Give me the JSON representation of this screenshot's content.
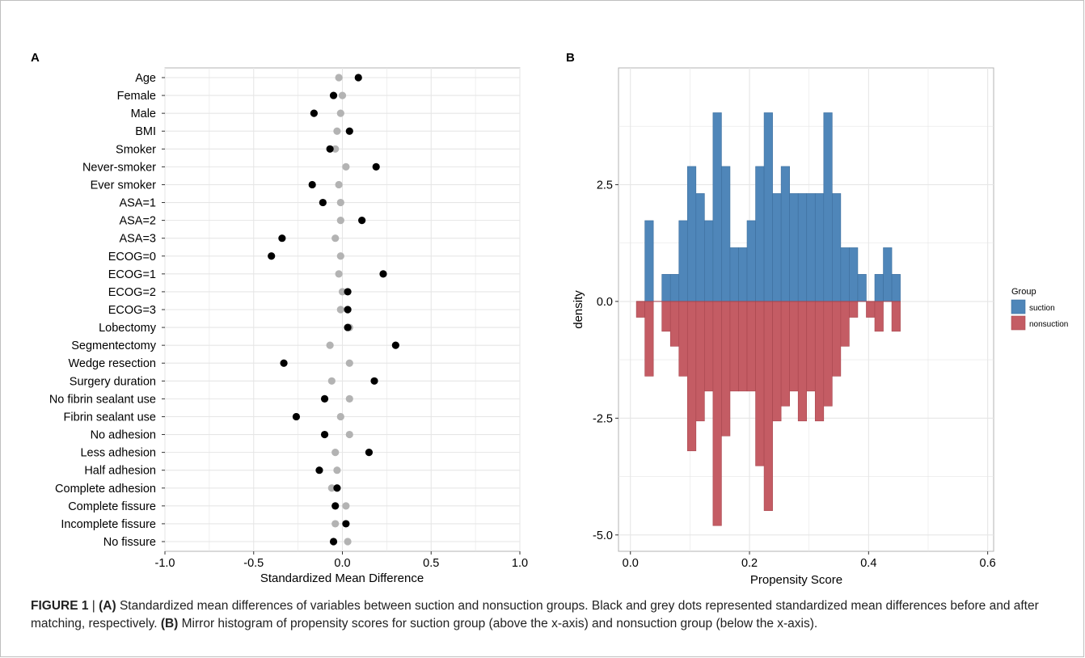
{
  "figure_label": "FIGURE 1",
  "caption": {
    "a_label": "(A)",
    "a_text": " Standardized mean differences of variables between suction and nonsuction groups. Black and grey dots represented standardized mean differences before and after matching, respectively. ",
    "b_label": "(B)",
    "b_text": " Mirror histogram of propensity scores for suction group (above the x-axis) and nonsuction group (below the x-axis)."
  },
  "colors": {
    "before": "#000000",
    "after": "#b3b3b3",
    "suction": "#4f86b9",
    "nonsuction": "#c45c64",
    "grid": "#e6e6e6"
  },
  "chart_data": [
    {
      "panel": "A",
      "type": "scatter",
      "xlabel": "Standardized Mean Difference",
      "xlim": [
        -1.0,
        1.0
      ],
      "xticks": [
        -1.0,
        -0.5,
        0.0,
        0.5,
        1.0
      ],
      "xtick_labels": [
        "-1.0",
        "-0.5",
        "0.0",
        "0.5",
        "1.0"
      ],
      "categories": [
        "Age",
        "Female",
        "Male",
        "BMI",
        "Smoker",
        "Never-smoker",
        "Ever smoker",
        "ASA=1",
        "ASA=2",
        "ASA=3",
        "ECOG=0",
        "ECOG=1",
        "ECOG=2",
        "ECOG=3",
        "Lobectomy",
        "Segmentectomy",
        "Wedge resection",
        "Surgery duration",
        "No fibrin sealant use",
        "Fibrin sealant use",
        "No adhesion",
        "Less adhesion",
        "Half adhesion",
        "Complete adhesion",
        "Complete fissure",
        "Incomplete fissure",
        "No fissure"
      ],
      "series": [
        {
          "key": "after",
          "values": [
            -0.02,
            0.0,
            -0.01,
            -0.03,
            -0.04,
            0.02,
            -0.02,
            -0.01,
            -0.01,
            -0.04,
            -0.01,
            -0.02,
            0.0,
            -0.01,
            0.04,
            -0.07,
            0.04,
            -0.06,
            0.04,
            -0.01,
            0.04,
            -0.04,
            -0.03,
            -0.06,
            0.02,
            -0.04,
            0.03
          ]
        },
        {
          "key": "before",
          "values": [
            0.09,
            -0.05,
            -0.16,
            0.04,
            -0.07,
            0.19,
            -0.17,
            -0.11,
            0.11,
            -0.34,
            -0.4,
            0.23,
            0.03,
            0.03,
            0.03,
            0.3,
            -0.33,
            0.18,
            -0.1,
            -0.26,
            -0.1,
            0.15,
            -0.13,
            -0.03,
            -0.04,
            0.02,
            -0.05
          ]
        }
      ]
    },
    {
      "panel": "B",
      "type": "bar",
      "xlabel": "Propensity Score",
      "ylabel": "density",
      "xlim": [
        -0.02,
        0.61
      ],
      "ylim": [
        -5.35,
        5.0
      ],
      "xticks": [
        0.0,
        0.2,
        0.4,
        0.6
      ],
      "xtick_labels": [
        "0.0",
        "0.2",
        "0.4",
        "0.6"
      ],
      "yticks": [
        -5.0,
        -2.5,
        0.0,
        2.5
      ],
      "ytick_labels": [
        "-5.0",
        "-2.5",
        "0.0",
        "2.5"
      ],
      "bin_start": 0.01,
      "bin_width": 0.0143,
      "legend_title": "Group",
      "legend_position": "right",
      "series": [
        {
          "name": "suction",
          "values": [
            0.0,
            1.73,
            0.0,
            0.58,
            0.58,
            1.73,
            2.89,
            2.31,
            1.73,
            4.04,
            2.89,
            1.15,
            1.15,
            1.73,
            2.89,
            4.04,
            2.31,
            2.89,
            2.31,
            2.31,
            2.31,
            2.31,
            4.04,
            2.31,
            1.15,
            1.15,
            0.58,
            0.0,
            0.58,
            1.15,
            0.58
          ]
        },
        {
          "name": "nonsuction",
          "values": [
            -0.34,
            -1.6,
            0.0,
            -0.64,
            -0.96,
            -1.6,
            -3.2,
            -2.56,
            -1.92,
            -4.8,
            -2.88,
            -1.92,
            -1.92,
            -1.92,
            -3.52,
            -4.48,
            -2.56,
            -2.24,
            -1.92,
            -2.56,
            -1.92,
            -2.56,
            -2.24,
            -1.6,
            -0.96,
            -0.34,
            0.0,
            -0.34,
            -0.64,
            0.0,
            -0.64
          ]
        }
      ]
    }
  ]
}
